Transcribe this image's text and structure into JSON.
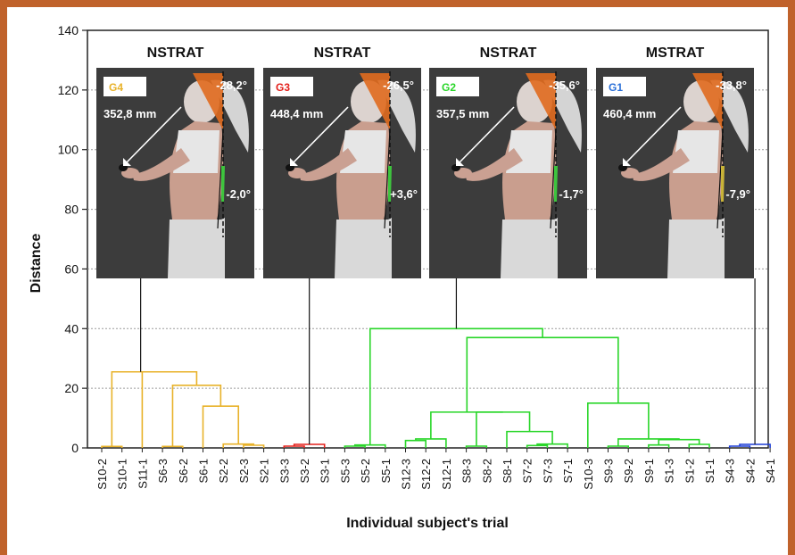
{
  "chart_data": {
    "type": "dendrogram",
    "title": "",
    "xlabel": "Individual subject's trial",
    "ylabel": "Distance",
    "ylim": [
      0,
      140
    ],
    "yticks": [
      0,
      20,
      40,
      60,
      80,
      100,
      120,
      140
    ],
    "grid": "dashed",
    "leaves": [
      "S10-2",
      "S10-1",
      "S11-1",
      "S6-3",
      "S6-2",
      "S6-1",
      "S2-2",
      "S2-3",
      "S2-1",
      "S3-3",
      "S3-2",
      "S3-1",
      "S5-3",
      "S5-2",
      "S5-1",
      "S12-3",
      "S12-2",
      "S12-1",
      "S8-3",
      "S8-2",
      "S8-1",
      "S7-2",
      "S7-3",
      "S7-1",
      "S10-3",
      "S9-3",
      "S9-2",
      "S9-1",
      "S1-3",
      "S1-2",
      "S1-1",
      "S4-3",
      "S4-2",
      "S4-1"
    ],
    "clusters": [
      {
        "group": "G4",
        "strategy": "NSTRAT",
        "color": "#e8b22a",
        "label_color": "#e8b22a",
        "distance": "352,8 mm",
        "head_angle": "-28,2°",
        "trunk_angle": "-2,0°",
        "wedge_color": "#3ec43e",
        "stem_to": 25.5
      },
      {
        "group": "G3",
        "strategy": "NSTRAT",
        "color": "#e3201b",
        "label_color": "#e3201b",
        "distance": "448,4 mm",
        "head_angle": "-26,5°",
        "trunk_angle": "+3,6°",
        "wedge_color": "#3ec43e",
        "stem_to": 1.2
      },
      {
        "group": "G2",
        "strategy": "NSTRAT",
        "color": "#29d629",
        "label_color": "#29d629",
        "distance": "357,5 mm",
        "head_angle": "-35,6°",
        "trunk_angle": "-1,7°",
        "wedge_color": "#3ec43e",
        "stem_to": 40
      },
      {
        "group": "G1",
        "strategy": "MSTRAT",
        "color": "#1f3fd6",
        "label_color": "#2a6fd8",
        "distance": "460,4 mm",
        "head_angle": "-33,8°",
        "trunk_angle": "-7,9°",
        "wedge_color": "#c9b338",
        "stem_to": 1.2
      }
    ]
  }
}
